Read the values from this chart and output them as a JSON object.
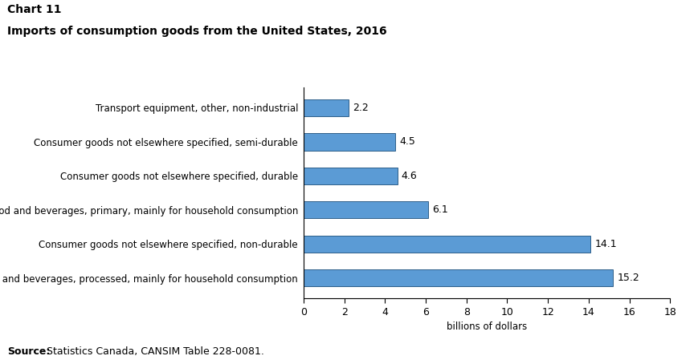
{
  "title_line1": "Chart 11",
  "title_line2": "Imports of consumption goods from the United States, 2016",
  "categories": [
    "Food and beverages, processed, mainly for household consumption",
    "Consumer goods not elsewhere specified, non-durable",
    "Food and beverages, primary, mainly for household consumption",
    "Consumer goods not elsewhere specified, durable",
    "Consumer goods not elsewhere specified, semi-durable",
    "Transport equipment, other, non-industrial"
  ],
  "values": [
    15.2,
    14.1,
    6.1,
    4.6,
    4.5,
    2.2
  ],
  "bar_color": "#5b9bd5",
  "bar_edgecolor": "#2e5f8a",
  "xlabel": "billions of dollars",
  "xlim": [
    0,
    18
  ],
  "xticks": [
    0,
    2,
    4,
    6,
    8,
    10,
    12,
    14,
    16,
    18
  ],
  "source_bold": "Source:",
  "source_text": " Statistics Canada, CANSIM Table 228-0081.",
  "title_fontsize": 10,
  "label_fontsize": 8.5,
  "tick_fontsize": 9,
  "source_fontsize": 9,
  "value_fontsize": 9,
  "bar_height": 0.5,
  "background_color": "#ffffff"
}
